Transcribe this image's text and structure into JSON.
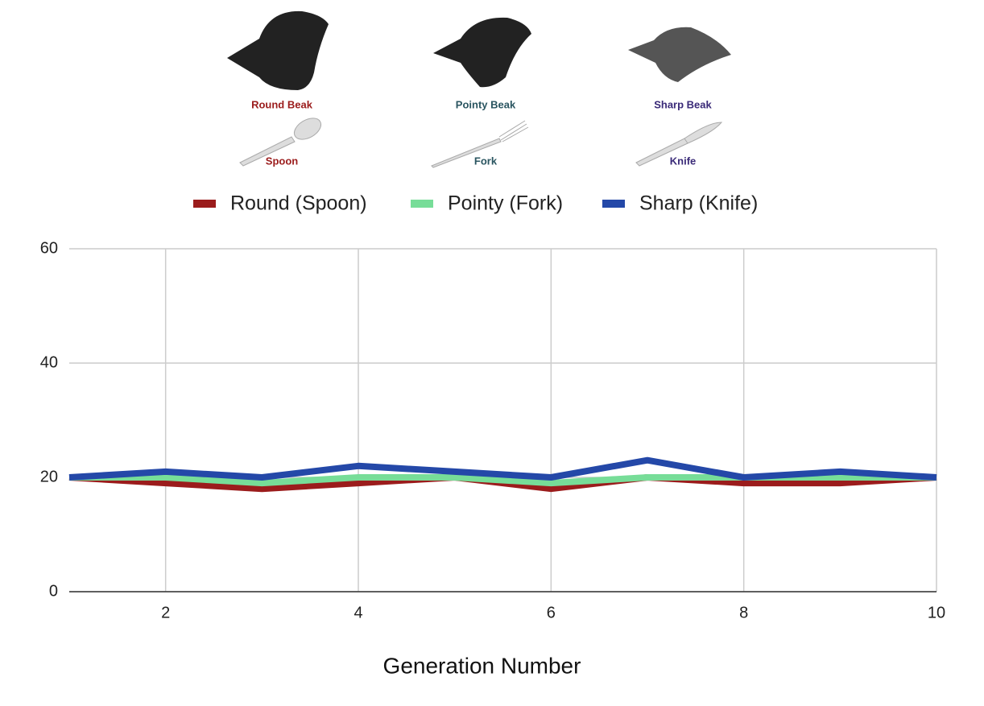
{
  "illustrations": [
    {
      "beak": "Round Beak",
      "utensil": "Spoon",
      "color": "#9b1c1c"
    },
    {
      "beak": "Pointy Beak",
      "utensil": "Fork",
      "color": "#2a5560"
    },
    {
      "beak": "Sharp Beak",
      "utensil": "Knife",
      "color": "#3a2a78"
    }
  ],
  "chart_data": {
    "type": "line",
    "x": [
      1,
      2,
      3,
      4,
      5,
      6,
      7,
      8,
      9,
      10
    ],
    "series": [
      {
        "name": "Round (Spoon)",
        "color": "#9b1c1c",
        "values": [
          20,
          19,
          18,
          19,
          20,
          18,
          20,
          19,
          19,
          20
        ]
      },
      {
        "name": "Pointy (Fork)",
        "color": "#77dd98",
        "values": [
          20,
          20,
          19,
          20,
          20,
          19,
          20,
          20,
          20,
          20
        ]
      },
      {
        "name": "Sharp (Knife)",
        "color": "#2448a8",
        "values": [
          20,
          21,
          20,
          22,
          21,
          20,
          23,
          20,
          21,
          20
        ]
      }
    ],
    "xlim": [
      1,
      10
    ],
    "xticks": [
      2,
      4,
      6,
      8,
      10
    ],
    "ylim": [
      0,
      60
    ],
    "yticks": [
      0,
      20,
      40,
      60
    ],
    "x_label": "Generation Number",
    "grid": true,
    "legend": "top"
  }
}
